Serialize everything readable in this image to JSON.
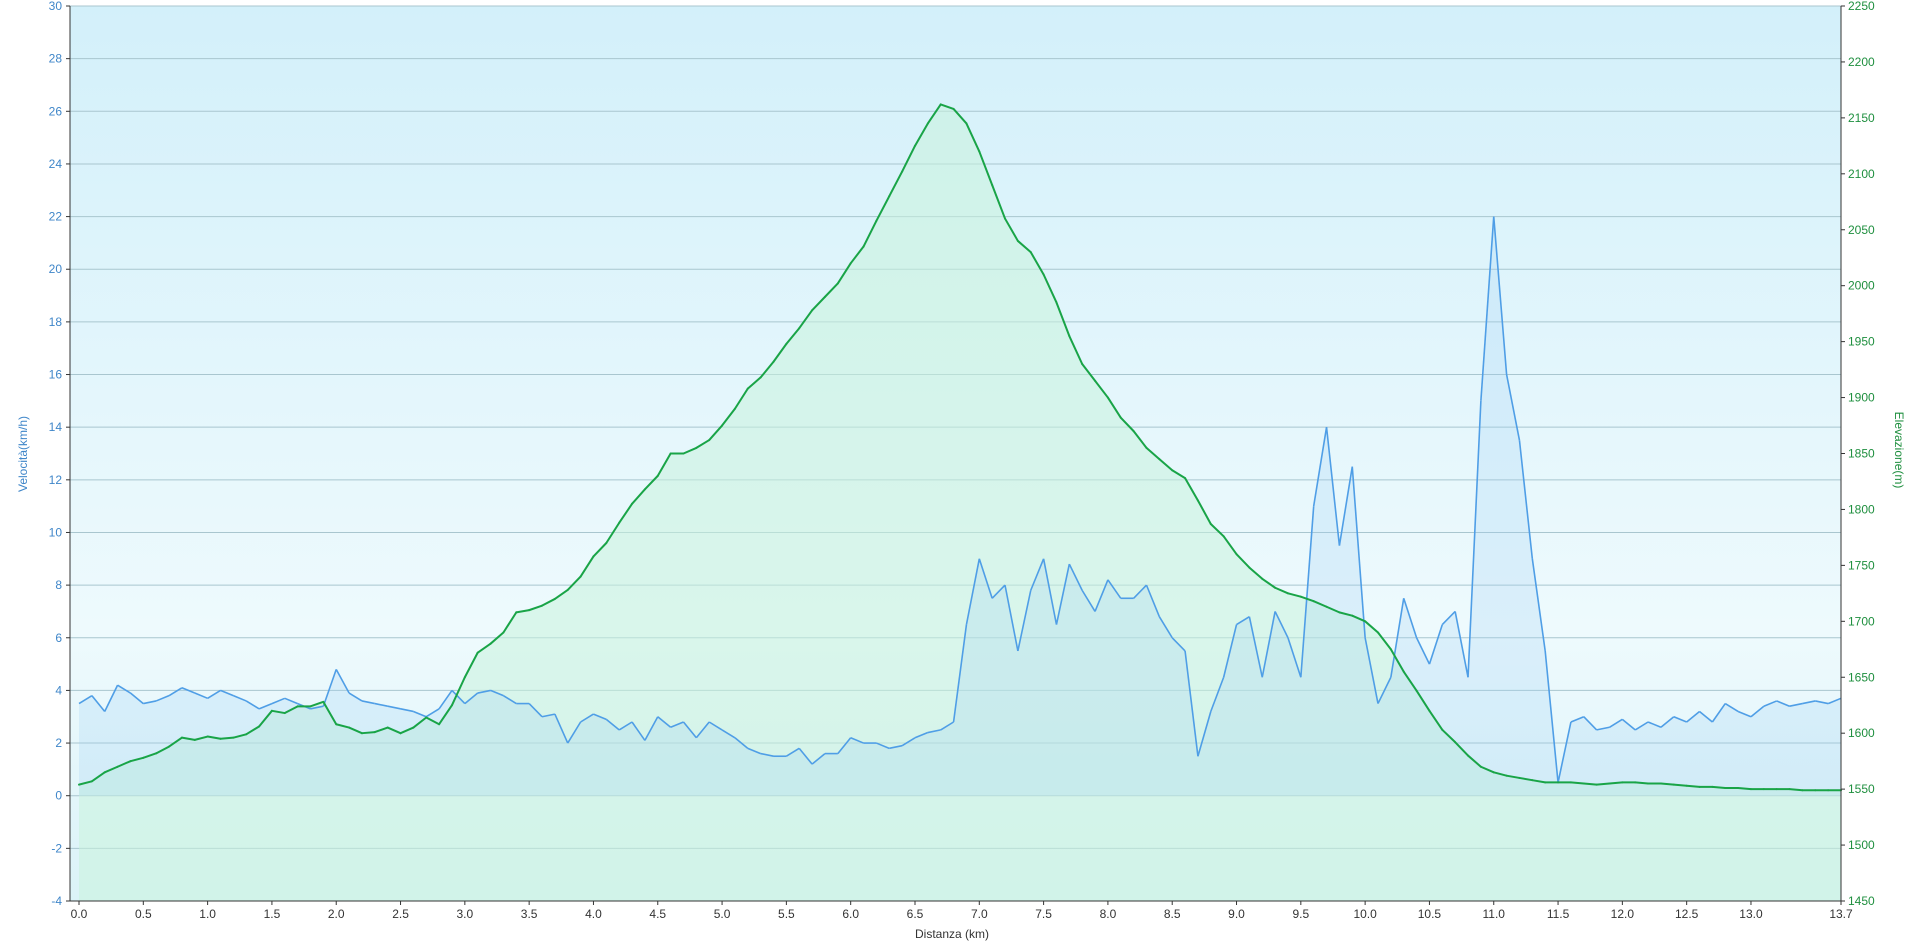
{
  "chart_data": {
    "type": "line",
    "xlabel": "Distanza  (km)",
    "y_left_label": "Velocità(km/h)",
    "y_right_label": "Elevazione(m)",
    "xlim": [
      -0.07,
      13.7
    ],
    "ylim_left": [
      -4,
      30
    ],
    "ylim_right": [
      1450,
      2250
    ],
    "x_ticks": [
      "0.0",
      "0.5",
      "1.0",
      "1.5",
      "2.0",
      "2.5",
      "3.0",
      "3.5",
      "4.0",
      "4.5",
      "5.0",
      "5.5",
      "6.0",
      "6.5",
      "7.0",
      "7.5",
      "8.0",
      "8.5",
      "9.0",
      "9.5",
      "10.0",
      "10.5",
      "11.0",
      "11.5",
      "12.0",
      "12.5",
      "13.0",
      "13.7"
    ],
    "y_left_ticks": [
      "-4",
      "-2",
      "0",
      "2",
      "4",
      "6",
      "8",
      "10",
      "12",
      "14",
      "16",
      "18",
      "20",
      "22",
      "24",
      "26",
      "28",
      "30"
    ],
    "y_right_ticks": [
      "1450",
      "1500",
      "1550",
      "1600",
      "1650",
      "1700",
      "1750",
      "1800",
      "1850",
      "1900",
      "1950",
      "2000",
      "2050",
      "2100",
      "2150",
      "2200",
      "2250"
    ],
    "colors": {
      "speed": "#4f9ee6",
      "elevation": "#19a447",
      "background_top": "#d3f0fa",
      "background_bottom": "#e9f8fb"
    },
    "series": [
      {
        "name": "Elevazione(m)",
        "axis": "right",
        "x": [
          0.0,
          0.1,
          0.2,
          0.3,
          0.4,
          0.5,
          0.6,
          0.7,
          0.8,
          0.9,
          1.0,
          1.1,
          1.2,
          1.3,
          1.4,
          1.5,
          1.6,
          1.7,
          1.8,
          1.9,
          2.0,
          2.1,
          2.2,
          2.3,
          2.4,
          2.5,
          2.6,
          2.7,
          2.8,
          2.9,
          3.0,
          3.1,
          3.2,
          3.3,
          3.4,
          3.5,
          3.6,
          3.7,
          3.8,
          3.9,
          4.0,
          4.1,
          4.2,
          4.3,
          4.4,
          4.5,
          4.6,
          4.7,
          4.8,
          4.9,
          5.0,
          5.1,
          5.2,
          5.3,
          5.4,
          5.5,
          5.6,
          5.7,
          5.8,
          5.9,
          6.0,
          6.1,
          6.2,
          6.3,
          6.4,
          6.5,
          6.6,
          6.7,
          6.8,
          6.9,
          7.0,
          7.1,
          7.2,
          7.3,
          7.4,
          7.5,
          7.6,
          7.7,
          7.8,
          7.9,
          8.0,
          8.1,
          8.2,
          8.3,
          8.4,
          8.5,
          8.6,
          8.7,
          8.8,
          8.9,
          9.0,
          9.1,
          9.2,
          9.3,
          9.4,
          9.5,
          9.6,
          9.7,
          9.8,
          9.9,
          10.0,
          10.1,
          10.2,
          10.3,
          10.4,
          10.5,
          10.6,
          10.7,
          10.8,
          10.9,
          11.0,
          11.1,
          11.2,
          11.3,
          11.4,
          11.5,
          11.6,
          11.7,
          11.8,
          11.9,
          12.0,
          12.1,
          12.2,
          12.3,
          12.4,
          12.5,
          12.6,
          12.7,
          12.8,
          12.9,
          13.0,
          13.1,
          13.2,
          13.3,
          13.4,
          13.5,
          13.6,
          13.7
        ],
        "values": [
          1554,
          1557,
          1565,
          1570,
          1575,
          1578,
          1582,
          1588,
          1596,
          1594,
          1597,
          1595,
          1596,
          1599,
          1606,
          1620,
          1618,
          1624,
          1624,
          1628,
          1608,
          1605,
          1600,
          1601,
          1605,
          1600,
          1605,
          1614,
          1608,
          1625,
          1650,
          1672,
          1680,
          1690,
          1708,
          1710,
          1714,
          1720,
          1728,
          1740,
          1758,
          1770,
          1788,
          1805,
          1818,
          1830,
          1850,
          1850,
          1855,
          1862,
          1875,
          1890,
          1908,
          1918,
          1932,
          1948,
          1962,
          1978,
          1990,
          2002,
          2020,
          2035,
          2058,
          2080,
          2102,
          2125,
          2145,
          2162,
          2158,
          2145,
          2120,
          2090,
          2060,
          2040,
          2030,
          2010,
          1985,
          1955,
          1930,
          1915,
          1900,
          1882,
          1870,
          1855,
          1845,
          1835,
          1828,
          1808,
          1787,
          1776,
          1760,
          1748,
          1738,
          1730,
          1725,
          1722,
          1718,
          1713,
          1708,
          1705,
          1700,
          1690,
          1675,
          1655,
          1638,
          1620,
          1603,
          1592,
          1580,
          1570,
          1565,
          1562,
          1560,
          1558,
          1556,
          1556,
          1556,
          1555,
          1554,
          1555,
          1556,
          1556,
          1555,
          1555,
          1554,
          1553,
          1552,
          1552,
          1551,
          1551,
          1550,
          1550,
          1550,
          1550,
          1549,
          1549,
          1549,
          1549
        ]
      },
      {
        "name": "Velocità(km/h)",
        "axis": "left",
        "x": [
          0.0,
          0.1,
          0.2,
          0.3,
          0.4,
          0.5,
          0.6,
          0.7,
          0.8,
          0.9,
          1.0,
          1.1,
          1.2,
          1.3,
          1.4,
          1.5,
          1.6,
          1.7,
          1.8,
          1.9,
          2.0,
          2.1,
          2.2,
          2.3,
          2.4,
          2.5,
          2.6,
          2.7,
          2.8,
          2.9,
          3.0,
          3.1,
          3.2,
          3.3,
          3.4,
          3.5,
          3.6,
          3.7,
          3.8,
          3.9,
          4.0,
          4.1,
          4.2,
          4.3,
          4.4,
          4.5,
          4.6,
          4.7,
          4.8,
          4.9,
          5.0,
          5.1,
          5.2,
          5.3,
          5.4,
          5.5,
          5.6,
          5.7,
          5.8,
          5.9,
          6.0,
          6.1,
          6.2,
          6.3,
          6.4,
          6.5,
          6.6,
          6.7,
          6.8,
          6.9,
          7.0,
          7.1,
          7.2,
          7.3,
          7.4,
          7.5,
          7.6,
          7.7,
          7.8,
          7.9,
          8.0,
          8.1,
          8.2,
          8.3,
          8.4,
          8.5,
          8.6,
          8.7,
          8.8,
          8.9,
          9.0,
          9.1,
          9.2,
          9.3,
          9.4,
          9.5,
          9.6,
          9.7,
          9.8,
          9.9,
          10.0,
          10.1,
          10.2,
          10.3,
          10.4,
          10.5,
          10.6,
          10.7,
          10.8,
          10.9,
          11.0,
          11.1,
          11.2,
          11.3,
          11.4,
          11.5,
          11.6,
          11.7,
          11.8,
          11.9,
          12.0,
          12.1,
          12.2,
          12.3,
          12.4,
          12.5,
          12.6,
          12.7,
          12.8,
          12.9,
          13.0,
          13.1,
          13.2,
          13.3,
          13.4,
          13.5,
          13.6,
          13.7
        ],
        "values": [
          3.5,
          3.8,
          3.2,
          4.2,
          3.9,
          3.5,
          3.6,
          3.8,
          4.1,
          3.9,
          3.7,
          4.0,
          3.8,
          3.6,
          3.3,
          3.5,
          3.7,
          3.5,
          3.3,
          3.4,
          4.8,
          3.9,
          3.6,
          3.5,
          3.4,
          3.3,
          3.2,
          3.0,
          3.3,
          4.0,
          3.5,
          3.9,
          4.0,
          3.8,
          3.5,
          3.5,
          3.0,
          3.1,
          2.0,
          2.8,
          3.1,
          2.9,
          2.5,
          2.8,
          2.1,
          3.0,
          2.6,
          2.8,
          2.2,
          2.8,
          2.5,
          2.2,
          1.8,
          1.6,
          1.5,
          1.5,
          1.8,
          1.2,
          1.6,
          1.6,
          2.2,
          2.0,
          2.0,
          1.8,
          1.9,
          2.2,
          2.4,
          2.5,
          2.8,
          6.5,
          9.0,
          7.5,
          8.0,
          5.5,
          7.8,
          9.0,
          6.5,
          8.8,
          7.8,
          7.0,
          8.2,
          7.5,
          7.5,
          8.0,
          6.8,
          6.0,
          5.5,
          1.5,
          3.2,
          4.5,
          6.5,
          6.8,
          4.5,
          7.0,
          6.0,
          4.5,
          11.0,
          14.0,
          9.5,
          12.5,
          6.0,
          3.5,
          4.5,
          7.5,
          6.0,
          5.0,
          6.5,
          7.0,
          4.5,
          15.0,
          22.0,
          16.0,
          13.5,
          9.0,
          5.5,
          0.5,
          2.8,
          3.0,
          2.5,
          2.6,
          2.9,
          2.5,
          2.8,
          2.6,
          3.0,
          2.8,
          3.2,
          2.8,
          3.5,
          3.2,
          3.0,
          3.4,
          3.6,
          3.4,
          3.5,
          3.6,
          3.5,
          3.7
        ]
      }
    ]
  }
}
